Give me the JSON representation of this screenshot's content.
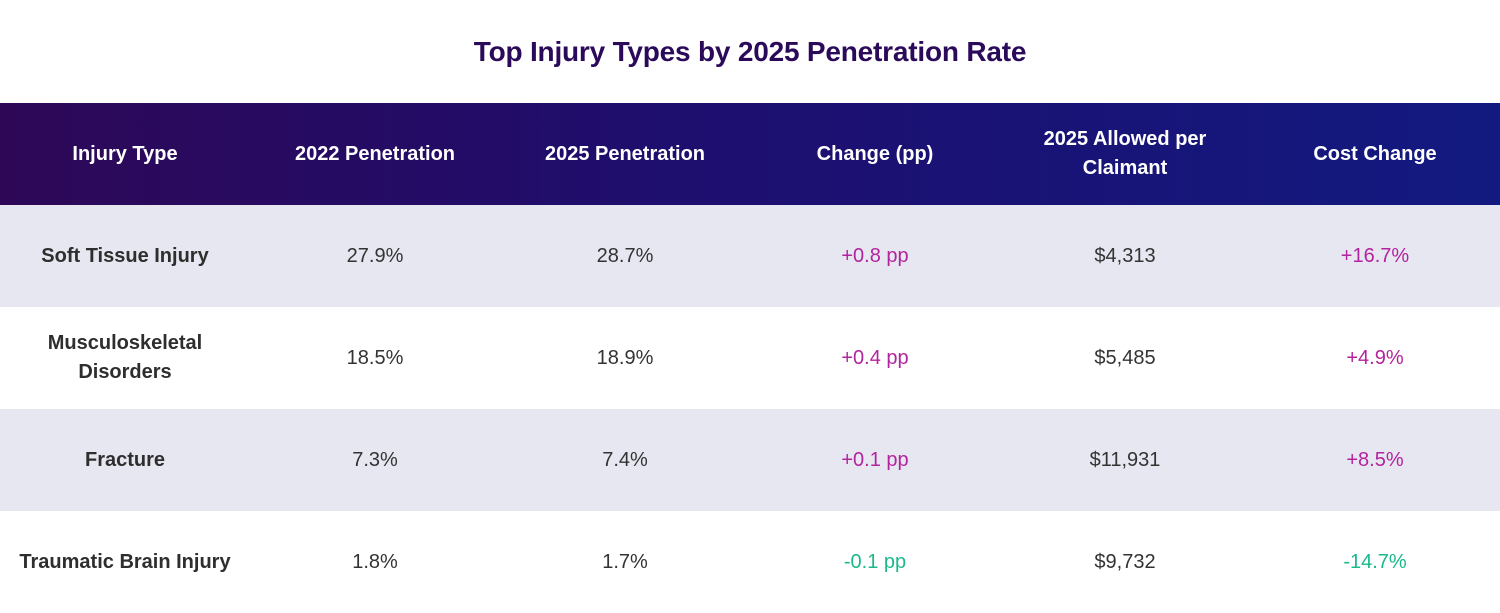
{
  "chart_data": {
    "type": "table",
    "title": "Top Injury Types by 2025 Penetration Rate",
    "columns": [
      "Injury Type",
      "2022 Penetration",
      "2025 Penetration",
      "Change (pp)",
      "2025 Allowed per Claimant",
      "Cost Change"
    ],
    "rows": [
      {
        "injury_type": "Soft Tissue Injury",
        "penetration_2022": "27.9%",
        "penetration_2025": "28.7%",
        "change_pp": "+0.8 pp",
        "allowed_2025": "$4,313",
        "cost_change": "+16.7%"
      },
      {
        "injury_type": "Musculoskeletal Disorders",
        "penetration_2022": "18.5%",
        "penetration_2025": "18.9%",
        "change_pp": "+0.4 pp",
        "allowed_2025": "$5,485",
        "cost_change": "+4.9%"
      },
      {
        "injury_type": "Fracture",
        "penetration_2022": "7.3%",
        "penetration_2025": "7.4%",
        "change_pp": "+0.1 pp",
        "allowed_2025": "$11,931",
        "cost_change": "+8.5%"
      },
      {
        "injury_type": "Traumatic Brain Injury",
        "penetration_2022": "1.8%",
        "penetration_2025": "1.7%",
        "change_pp": "-0.1 pp",
        "allowed_2025": "$9,732",
        "cost_change": "-14.7%"
      }
    ]
  },
  "colors": {
    "title": "#2b0a5a",
    "header_start": "#2e0857",
    "header_end": "#121a80",
    "band": "#e7e7f1",
    "positive": "#b4239e",
    "negative": "#1bb98c"
  }
}
